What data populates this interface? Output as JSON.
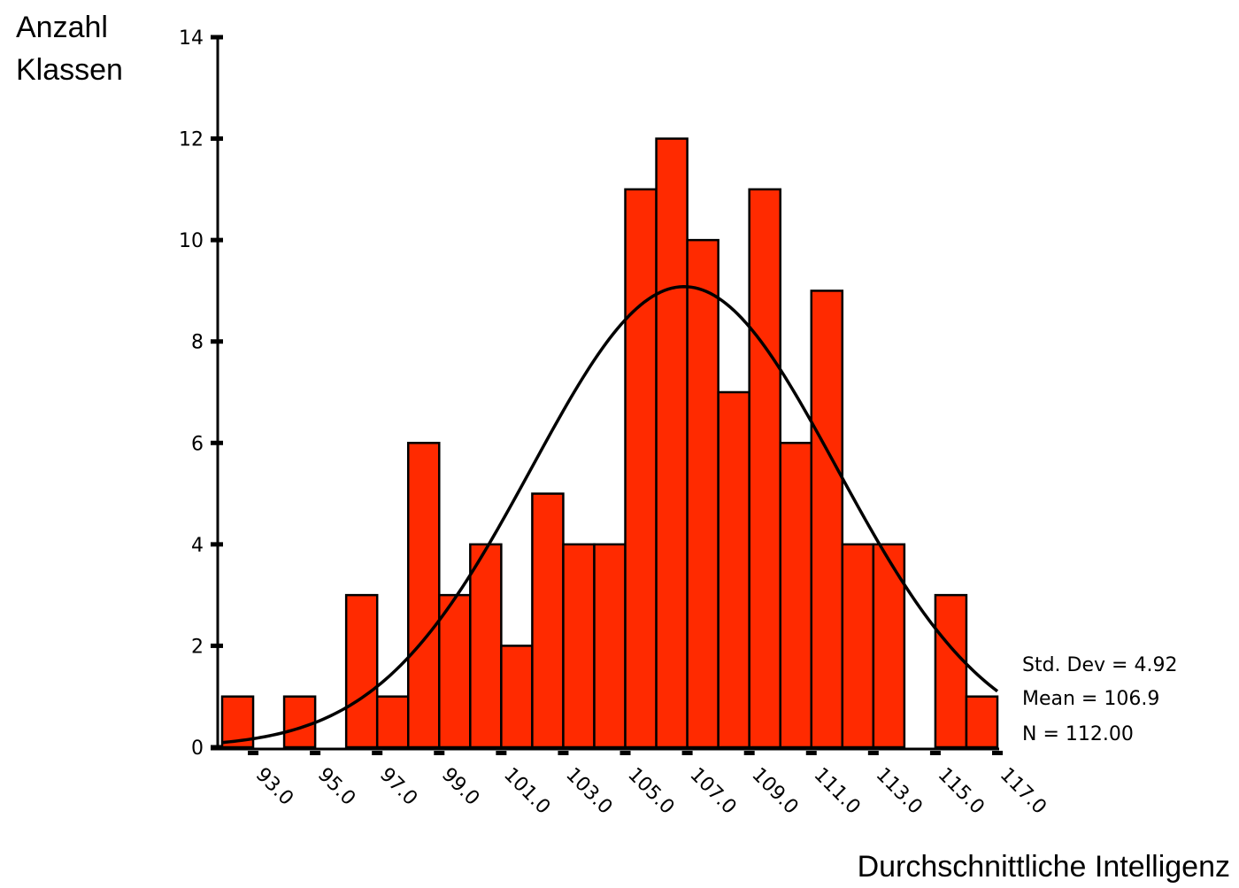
{
  "chart_data": {
    "type": "bar",
    "title": "",
    "xlabel": "Durchschnittliche Intelligenz",
    "ylabel_lines": [
      "Anzahl",
      "Klassen"
    ],
    "bin_centers": [
      92.5,
      93.5,
      94.5,
      95.5,
      96.5,
      97.5,
      98.5,
      99.5,
      100.5,
      101.5,
      102.5,
      103.5,
      104.5,
      105.5,
      106.5,
      107.5,
      108.5,
      109.5,
      110.5,
      111.5,
      112.5,
      113.5,
      114.5,
      115.5,
      116.5
    ],
    "values": [
      1,
      0,
      1,
      0,
      3,
      1,
      6,
      3,
      4,
      2,
      5,
      4,
      4,
      11,
      12,
      10,
      7,
      11,
      6,
      9,
      4,
      4,
      0,
      3,
      1
    ],
    "bin_width": 1,
    "xlim": [
      92,
      117
    ],
    "ylim": [
      0,
      14
    ],
    "y_ticks": [
      0,
      2,
      4,
      6,
      8,
      10,
      12,
      14
    ],
    "x_ticks": [
      93,
      95,
      97,
      99,
      101,
      103,
      105,
      107,
      109,
      111,
      113,
      115,
      117
    ],
    "x_tick_labels": [
      "93.0",
      "95.0",
      "97.0",
      "99.0",
      "101.0",
      "103.0",
      "105.0",
      "107.0",
      "109.0",
      "111.0",
      "113.0",
      "115.0",
      "117.0"
    ],
    "bar_color": "#ff2a00",
    "normal_curve": {
      "mean": 106.9,
      "std_dev": 4.92,
      "n": 112,
      "bin_width": 1
    },
    "stats": [
      "Std. Dev = 4.92",
      "Mean = 106.9",
      "N = 112.00"
    ]
  }
}
